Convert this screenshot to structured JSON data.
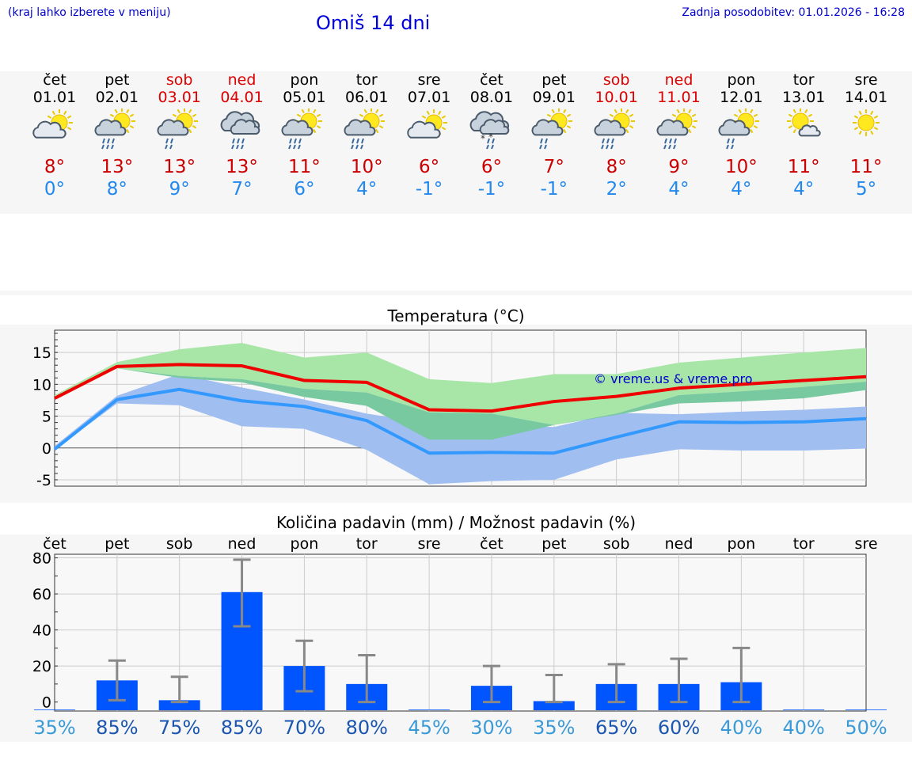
{
  "header": {
    "hint": "(kraj lahko izberete v meniju)",
    "title": "Omiš 14 dni",
    "updated": "Zadnja posodobitev: 01.01.2026 - 16:28"
  },
  "days": [
    {
      "name": "čet",
      "date": "01.01",
      "weekend": false,
      "icon": "partly-cloudy-sun-icon",
      "tmax": "8°",
      "tmin": "0°"
    },
    {
      "name": "pet",
      "date": "02.01",
      "weekend": false,
      "icon": "sun-cloud-rain-icon",
      "tmax": "13°",
      "tmin": "8°"
    },
    {
      "name": "sob",
      "date": "03.01",
      "weekend": true,
      "icon": "sun-cloud-light-rain-icon",
      "tmax": "13°",
      "tmin": "9°"
    },
    {
      "name": "ned",
      "date": "04.01",
      "weekend": true,
      "icon": "cloud-rain-icon",
      "tmax": "13°",
      "tmin": "7°"
    },
    {
      "name": "pon",
      "date": "05.01",
      "weekend": false,
      "icon": "sun-cloud-rain-icon",
      "tmax": "11°",
      "tmin": "6°"
    },
    {
      "name": "tor",
      "date": "06.01",
      "weekend": false,
      "icon": "sun-cloud-rain-icon",
      "tmax": "10°",
      "tmin": "4°"
    },
    {
      "name": "sre",
      "date": "07.01",
      "weekend": false,
      "icon": "partly-cloudy-sun-icon",
      "tmax": "6°",
      "tmin": "-1°"
    },
    {
      "name": "čet",
      "date": "08.01",
      "weekend": false,
      "icon": "cloud-snow-rain-icon",
      "tmax": "6°",
      "tmin": "-1°"
    },
    {
      "name": "pet",
      "date": "09.01",
      "weekend": false,
      "icon": "sun-cloud-light-rain-icon",
      "tmax": "7°",
      "tmin": "-1°"
    },
    {
      "name": "sob",
      "date": "10.01",
      "weekend": true,
      "icon": "sun-cloud-rain-icon",
      "tmax": "8°",
      "tmin": "2°"
    },
    {
      "name": "ned",
      "date": "11.01",
      "weekend": true,
      "icon": "sun-cloud-rain-icon",
      "tmax": "9°",
      "tmin": "4°"
    },
    {
      "name": "pon",
      "date": "12.01",
      "weekend": false,
      "icon": "sun-cloud-light-rain-icon",
      "tmax": "10°",
      "tmin": "4°"
    },
    {
      "name": "tor",
      "date": "13.01",
      "weekend": false,
      "icon": "sun-small-cloud-icon",
      "tmax": "11°",
      "tmin": "4°"
    },
    {
      "name": "sre",
      "date": "14.01",
      "weekend": false,
      "icon": "sun-icon",
      "tmax": "11°",
      "tmin": "5°"
    }
  ],
  "colors": {
    "weekend": "#dd0000",
    "tmax": "#cc0000",
    "tmin": "#2288ee",
    "max_line": "#ee0000",
    "min_line": "#3399ff",
    "max_band": "#a8e6a8",
    "max_band_inner": "#78c8a0",
    "min_band": "#a0bef0",
    "bar": "#0055ff",
    "errorbar": "#888888"
  },
  "chart_data": [
    {
      "type": "line",
      "title": "Temperatura (°C)",
      "watermark": "© vreme.us & vreme.pro",
      "ylim": [
        -6,
        18.5
      ],
      "yticks": [
        -5,
        0,
        5,
        10,
        15
      ],
      "x": [
        0,
        1,
        2,
        3,
        4,
        5,
        6,
        7,
        8,
        9,
        10,
        11,
        12,
        13
      ],
      "series": [
        {
          "name": "max",
          "values": [
            7.8,
            12.8,
            13.1,
            12.9,
            10.6,
            10.3,
            6.0,
            5.8,
            7.3,
            8.1,
            9.4,
            10.0,
            10.6,
            11.2
          ]
        },
        {
          "name": "min",
          "values": [
            -0.2,
            7.6,
            9.2,
            7.4,
            6.5,
            4.3,
            -0.8,
            -0.7,
            -0.8,
            1.7,
            4.1,
            4.0,
            4.1,
            4.6
          ]
        },
        {
          "name": "max_range_high",
          "values": [
            8.3,
            13.5,
            15.5,
            16.5,
            14.2,
            15.0,
            10.8,
            10.2,
            11.6,
            11.6,
            13.4,
            14.2,
            15.0,
            15.7
          ]
        },
        {
          "name": "max_range_low",
          "values": [
            7.6,
            12.5,
            11.3,
            10.8,
            9.3,
            8.7,
            5.6,
            5.4,
            3.6,
            5.4,
            8.3,
            8.9,
            9.6,
            10.4
          ]
        },
        {
          "name": "max_inner_low",
          "values": [
            7.6,
            12.5,
            11.0,
            10.3,
            8.0,
            6.6,
            1.3,
            1.3,
            3.6,
            5.2,
            7.0,
            7.3,
            7.8,
            9.1
          ]
        },
        {
          "name": "min_range_high",
          "values": [
            0.3,
            8.2,
            11.6,
            9.5,
            7.6,
            5.4,
            3.9,
            3.5,
            3.3,
            5.5,
            5.3,
            5.7,
            6.0,
            6.5
          ]
        },
        {
          "name": "min_range_low",
          "values": [
            -0.3,
            7.0,
            6.7,
            3.4,
            3.0,
            -0.3,
            -5.7,
            -5.2,
            -5.0,
            -1.8,
            -0.2,
            -0.4,
            -0.4,
            -0.1
          ]
        }
      ]
    },
    {
      "type": "bar",
      "title": "Količina padavin (mm) / Možnost padavin (%)",
      "categories": [
        "čet",
        "pet",
        "sob",
        "ned",
        "pon",
        "tor",
        "sre",
        "čet",
        "pet",
        "sob",
        "ned",
        "pon",
        "tor",
        "sre"
      ],
      "values": [
        0,
        12,
        1,
        61,
        20,
        10,
        0,
        9,
        0.5,
        10,
        10,
        11,
        0,
        0
      ],
      "err_low": [
        0,
        1,
        0,
        42,
        6,
        0,
        0,
        0,
        0,
        0,
        0,
        0,
        0,
        0
      ],
      "err_high": [
        0,
        23,
        14,
        79,
        34,
        26,
        0,
        20,
        15,
        21,
        24,
        30,
        0,
        0
      ],
      "probability": [
        "35%",
        "85%",
        "75%",
        "85%",
        "70%",
        "80%",
        "45%",
        "30%",
        "35%",
        "65%",
        "60%",
        "40%",
        "40%",
        "50%"
      ],
      "probability_values": [
        35,
        85,
        75,
        85,
        70,
        80,
        45,
        30,
        35,
        65,
        60,
        40,
        40,
        50
      ],
      "ylim": [
        -5,
        82
      ],
      "yticks": [
        0,
        20,
        40,
        60,
        80
      ]
    }
  ]
}
